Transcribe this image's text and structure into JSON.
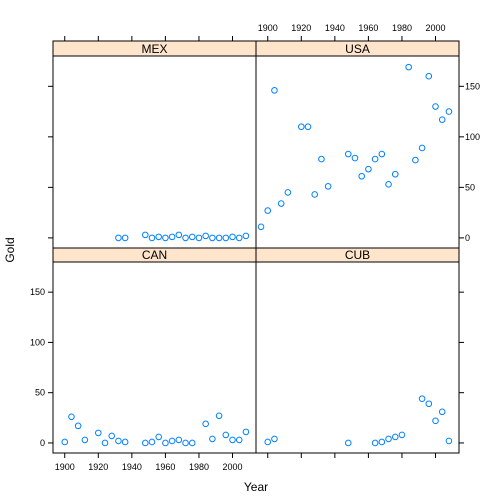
{
  "chart_data": {
    "type": "scatter",
    "layout": "lattice 2x2",
    "xlabel": "Year",
    "ylabel": "Gold",
    "xlim": [
      1893,
      2014
    ],
    "ylim": [
      -10,
      180
    ],
    "x_ticks": [
      1900,
      1920,
      1940,
      1960,
      1980,
      2000
    ],
    "y_ticks": [
      0,
      50,
      100,
      150
    ],
    "point_color": "#0080ff",
    "strip_color": "#ffe5cc",
    "panels": [
      {
        "name": "MEX",
        "points": [
          [
            1932,
            0
          ],
          [
            1936,
            0
          ],
          [
            1948,
            3
          ],
          [
            1952,
            0
          ],
          [
            1956,
            1
          ],
          [
            1960,
            0
          ],
          [
            1964,
            1
          ],
          [
            1968,
            3
          ],
          [
            1972,
            0
          ],
          [
            1976,
            1
          ],
          [
            1980,
            0
          ],
          [
            1984,
            2
          ],
          [
            1988,
            0
          ],
          [
            1992,
            0
          ],
          [
            1996,
            0
          ],
          [
            2000,
            1
          ],
          [
            2004,
            0
          ],
          [
            2008,
            2
          ]
        ]
      },
      {
        "name": "USA",
        "points": [
          [
            1896,
            11
          ],
          [
            1900,
            27
          ],
          [
            1904,
            146
          ],
          [
            1908,
            34
          ],
          [
            1912,
            45
          ],
          [
            1920,
            110
          ],
          [
            1924,
            110
          ],
          [
            1928,
            43
          ],
          [
            1932,
            78
          ],
          [
            1936,
            51
          ],
          [
            1948,
            83
          ],
          [
            1952,
            79
          ],
          [
            1956,
            61
          ],
          [
            1960,
            68
          ],
          [
            1964,
            78
          ],
          [
            1968,
            83
          ],
          [
            1972,
            53
          ],
          [
            1976,
            63
          ],
          [
            1984,
            169
          ],
          [
            1988,
            77
          ],
          [
            1992,
            89
          ],
          [
            1996,
            160
          ],
          [
            2000,
            130
          ],
          [
            2004,
            117
          ],
          [
            2008,
            125
          ]
        ]
      },
      {
        "name": "CAN",
        "points": [
          [
            1900,
            1
          ],
          [
            1904,
            26
          ],
          [
            1908,
            17
          ],
          [
            1912,
            3
          ],
          [
            1920,
            10
          ],
          [
            1924,
            0
          ],
          [
            1928,
            7
          ],
          [
            1932,
            2
          ],
          [
            1936,
            1
          ],
          [
            1948,
            0
          ],
          [
            1952,
            1
          ],
          [
            1956,
            6
          ],
          [
            1960,
            0
          ],
          [
            1964,
            2
          ],
          [
            1968,
            3
          ],
          [
            1972,
            0
          ],
          [
            1976,
            0
          ],
          [
            1984,
            19
          ],
          [
            1988,
            4
          ],
          [
            1992,
            27
          ],
          [
            1996,
            8
          ],
          [
            2000,
            3
          ],
          [
            2004,
            3
          ],
          [
            2008,
            11
          ]
        ]
      },
      {
        "name": "CUB",
        "points": [
          [
            1900,
            1
          ],
          [
            1904,
            4
          ],
          [
            1948,
            0
          ],
          [
            1964,
            0
          ],
          [
            1968,
            1
          ],
          [
            1972,
            4
          ],
          [
            1976,
            6
          ],
          [
            1980,
            8
          ],
          [
            1992,
            44
          ],
          [
            1996,
            39
          ],
          [
            2000,
            22
          ],
          [
            2004,
            31
          ],
          [
            2008,
            2
          ]
        ]
      }
    ]
  }
}
